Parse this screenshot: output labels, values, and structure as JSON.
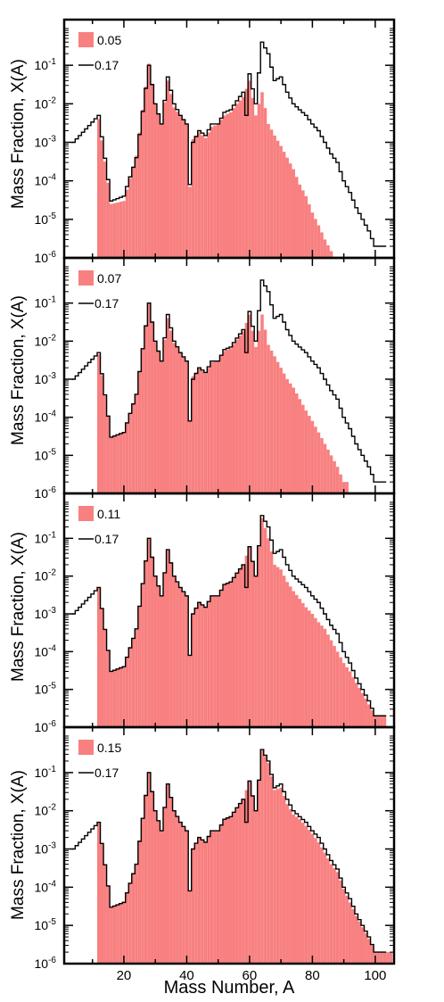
{
  "colors": {
    "filled_series": "#f88080",
    "outline_series": "#000000",
    "axis": "#000000"
  },
  "chart_data": {
    "type": "bar",
    "layout": "4 vertically stacked panels sharing the x axis",
    "xlabel": "Mass Number, A",
    "ylabel": "Mass Fraction, X(A)",
    "y_scale": "log",
    "xlim": [
      1,
      106
    ],
    "ylim": [
      1e-06,
      1
    ],
    "xticks": [
      20,
      40,
      60,
      80,
      100
    ],
    "xtick_labels": [
      "20",
      "40",
      "60",
      "80",
      "100"
    ],
    "ytick_labels": [
      {
        "base": "10",
        "exp": "-1",
        "value": 0.1
      },
      {
        "base": "10",
        "exp": "-2",
        "value": 0.01
      },
      {
        "base": "10",
        "exp": "-3",
        "value": 0.001
      },
      {
        "base": "10",
        "exp": "-4",
        "value": 0.0001
      },
      {
        "base": "10",
        "exp": "-5",
        "value": 1e-05
      },
      {
        "base": "10",
        "exp": "-6",
        "value": 1e-06
      }
    ],
    "legend_position": "top-left",
    "reference_series": {
      "name": "0.17",
      "style": "black step outline",
      "points": [
        [
          4,
          0.001
        ],
        [
          12,
          0.005
        ],
        [
          16,
          3e-05
        ],
        [
          20,
          4e-05
        ],
        [
          24,
          0.0004
        ],
        [
          28,
          0.1
        ],
        [
          30,
          0.01
        ],
        [
          32,
          0.003
        ],
        [
          34,
          0.05
        ],
        [
          36,
          0.01
        ],
        [
          38,
          0.005
        ],
        [
          40,
          0.003
        ],
        [
          41,
          8e-05
        ],
        [
          42,
          0.001
        ],
        [
          44,
          0.002
        ],
        [
          46,
          0.0015
        ],
        [
          48,
          0.003
        ],
        [
          50,
          0.003
        ],
        [
          52,
          0.006
        ],
        [
          54,
          0.007
        ],
        [
          56,
          0.012
        ],
        [
          58,
          0.02
        ],
        [
          59,
          0.005
        ],
        [
          60,
          0.06
        ],
        [
          62,
          0.01
        ],
        [
          64,
          0.4
        ],
        [
          66,
          0.2
        ],
        [
          68,
          0.04
        ],
        [
          70,
          0.05
        ],
        [
          72,
          0.02
        ],
        [
          74,
          0.01
        ],
        [
          76,
          0.007
        ],
        [
          78,
          0.005
        ],
        [
          80,
          0.003
        ],
        [
          82,
          0.002
        ],
        [
          84,
          0.001
        ],
        [
          86,
          0.0005
        ],
        [
          88,
          0.0003
        ],
        [
          90,
          0.0001
        ],
        [
          92,
          5e-05
        ],
        [
          94,
          2e-05
        ],
        [
          96,
          1e-05
        ],
        [
          98,
          5e-06
        ],
        [
          100,
          2e-06
        ]
      ]
    },
    "panels": [
      {
        "name": "0.05",
        "truncate_above": 87,
        "points": [
          [
            12,
            0.004
          ],
          [
            16,
            2.5e-05
          ],
          [
            20,
            3e-05
          ],
          [
            24,
            0.00045
          ],
          [
            28,
            0.11
          ],
          [
            30,
            0.01
          ],
          [
            32,
            0.003
          ],
          [
            34,
            0.04
          ],
          [
            36,
            0.008
          ],
          [
            38,
            0.005
          ],
          [
            40,
            0.003
          ],
          [
            41,
            7e-05
          ],
          [
            42,
            0.0012
          ],
          [
            44,
            0.0018
          ],
          [
            46,
            0.0013
          ],
          [
            48,
            0.0025
          ],
          [
            50,
            0.003
          ],
          [
            52,
            0.005
          ],
          [
            54,
            0.006
          ],
          [
            56,
            0.01
          ],
          [
            58,
            0.015
          ],
          [
            60,
            0.04
          ],
          [
            62,
            0.005
          ],
          [
            64,
            0.02
          ],
          [
            66,
            0.003
          ],
          [
            68,
            0.0015
          ],
          [
            70,
            0.0008
          ],
          [
            72,
            0.0004
          ],
          [
            74,
            0.0002
          ],
          [
            76,
            8e-05
          ],
          [
            78,
            4e-05
          ],
          [
            80,
            1.5e-05
          ],
          [
            82,
            7e-06
          ],
          [
            84,
            3e-06
          ],
          [
            86,
            1.5e-06
          ]
        ]
      },
      {
        "name": "0.07",
        "truncate_above": 92,
        "points": [
          [
            12,
            0.0045
          ],
          [
            16,
            3e-05
          ],
          [
            20,
            4e-05
          ],
          [
            24,
            0.0004
          ],
          [
            28,
            0.1
          ],
          [
            30,
            0.01
          ],
          [
            32,
            0.003
          ],
          [
            34,
            0.04
          ],
          [
            36,
            0.009
          ],
          [
            38,
            0.005
          ],
          [
            40,
            0.003
          ],
          [
            41,
            8e-05
          ],
          [
            42,
            0.0012
          ],
          [
            44,
            0.0019
          ],
          [
            46,
            0.0014
          ],
          [
            48,
            0.0028
          ],
          [
            50,
            0.003
          ],
          [
            52,
            0.0055
          ],
          [
            54,
            0.0065
          ],
          [
            56,
            0.011
          ],
          [
            58,
            0.018
          ],
          [
            60,
            0.05
          ],
          [
            62,
            0.007
          ],
          [
            64,
            0.05
          ],
          [
            66,
            0.008
          ],
          [
            68,
            0.004
          ],
          [
            70,
            0.002
          ],
          [
            72,
            0.001
          ],
          [
            74,
            0.0006
          ],
          [
            76,
            0.0003
          ],
          [
            78,
            0.00015
          ],
          [
            80,
            8e-05
          ],
          [
            82,
            4e-05
          ],
          [
            84,
            2e-05
          ],
          [
            86,
            1e-05
          ],
          [
            88,
            5e-06
          ],
          [
            90,
            2e-06
          ]
        ]
      },
      {
        "name": "0.11",
        "truncate_above": 104,
        "points": [
          [
            12,
            0.005
          ],
          [
            16,
            3e-05
          ],
          [
            20,
            4e-05
          ],
          [
            24,
            0.0004
          ],
          [
            28,
            0.1
          ],
          [
            30,
            0.01
          ],
          [
            32,
            0.003
          ],
          [
            34,
            0.05
          ],
          [
            36,
            0.01
          ],
          [
            38,
            0.005
          ],
          [
            40,
            0.003
          ],
          [
            41,
            8e-05
          ],
          [
            42,
            0.001
          ],
          [
            44,
            0.002
          ],
          [
            46,
            0.0015
          ],
          [
            48,
            0.003
          ],
          [
            50,
            0.003
          ],
          [
            52,
            0.006
          ],
          [
            54,
            0.007
          ],
          [
            56,
            0.012
          ],
          [
            58,
            0.02
          ],
          [
            60,
            0.06
          ],
          [
            62,
            0.01
          ],
          [
            64,
            0.35
          ],
          [
            66,
            0.1
          ],
          [
            68,
            0.02
          ],
          [
            70,
            0.015
          ],
          [
            72,
            0.007
          ],
          [
            74,
            0.004
          ],
          [
            76,
            0.0025
          ],
          [
            78,
            0.0015
          ],
          [
            80,
            0.001
          ],
          [
            82,
            0.0006
          ],
          [
            84,
            0.0004
          ],
          [
            86,
            0.0002
          ],
          [
            88,
            0.0001
          ],
          [
            90,
            5e-05
          ],
          [
            92,
            3e-05
          ],
          [
            94,
            1.5e-05
          ],
          [
            96,
            8e-06
          ],
          [
            98,
            4e-06
          ],
          [
            100,
            2e-06
          ]
        ]
      },
      {
        "name": "0.15",
        "truncate_above": 106,
        "points": [
          [
            12,
            0.005
          ],
          [
            16,
            3e-05
          ],
          [
            20,
            4e-05
          ],
          [
            24,
            0.0004
          ],
          [
            28,
            0.1
          ],
          [
            30,
            0.01
          ],
          [
            32,
            0.003
          ],
          [
            34,
            0.05
          ],
          [
            36,
            0.01
          ],
          [
            38,
            0.005
          ],
          [
            40,
            0.003
          ],
          [
            41,
            8e-05
          ],
          [
            42,
            0.001
          ],
          [
            44,
            0.002
          ],
          [
            46,
            0.0015
          ],
          [
            48,
            0.003
          ],
          [
            50,
            0.003
          ],
          [
            52,
            0.006
          ],
          [
            54,
            0.007
          ],
          [
            56,
            0.012
          ],
          [
            58,
            0.02
          ],
          [
            60,
            0.06
          ],
          [
            62,
            0.01
          ],
          [
            64,
            0.38
          ],
          [
            66,
            0.18
          ],
          [
            68,
            0.035
          ],
          [
            70,
            0.04
          ],
          [
            72,
            0.015
          ],
          [
            74,
            0.008
          ],
          [
            76,
            0.006
          ],
          [
            78,
            0.004
          ],
          [
            80,
            0.0025
          ],
          [
            82,
            0.0015
          ],
          [
            84,
            0.0008
          ],
          [
            86,
            0.0004
          ],
          [
            88,
            0.00025
          ],
          [
            90,
            9e-05
          ],
          [
            92,
            4e-05
          ],
          [
            94,
            1.8e-05
          ],
          [
            96,
            9e-06
          ],
          [
            98,
            4.5e-06
          ],
          [
            100,
            2e-06
          ]
        ]
      }
    ]
  }
}
